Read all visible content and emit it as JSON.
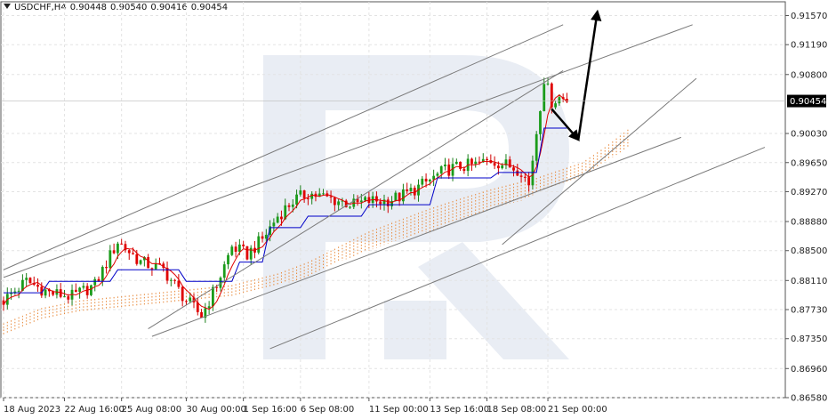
{
  "header": {
    "symbol": "USDCHF,H4",
    "open": "0.90448",
    "high": "0.90540",
    "low": "0.90416",
    "close": "0.90454"
  },
  "chart_data": {
    "type": "candlestick",
    "instrument": "USDCHF",
    "timeframe": "H4",
    "y_ticks": [
      "0.91570",
      "0.91190",
      "0.90800",
      "0.90030",
      "0.89650",
      "0.89270",
      "0.88880",
      "0.88500",
      "0.88110",
      "0.87730",
      "0.87350",
      "0.86960",
      "0.86580"
    ],
    "y_ticks_at": [
      0.9157,
      0.9119,
      0.908,
      0.9003,
      0.8965,
      0.8927,
      0.8888,
      0.885,
      0.8811,
      0.8773,
      0.8735,
      0.8696,
      0.8658
    ],
    "ylim": [
      0.8658,
      0.9175
    ],
    "current_price": "0.90454",
    "x_ticks": [
      "18 Aug 2023",
      "22 Aug 16:00",
      "25 Aug 08:00",
      "30 Aug 00:00",
      "1 Sep 16:00",
      "6 Sep 08:00",
      "11 Sep 00:00",
      "13 Sep 16:00",
      "18 Sep 08:00",
      "21 Sep 00:00"
    ],
    "x_ticks_bar": [
      0,
      16,
      31,
      48,
      63,
      78,
      96,
      112,
      127,
      143
    ],
    "total_bars": 210,
    "candle_key_closes": [
      [
        0,
        0.8785
      ],
      [
        6,
        0.881
      ],
      [
        12,
        0.8795
      ],
      [
        18,
        0.879
      ],
      [
        24,
        0.8805
      ],
      [
        30,
        0.8862
      ],
      [
        36,
        0.8835
      ],
      [
        42,
        0.8825
      ],
      [
        48,
        0.8785
      ],
      [
        52,
        0.8765
      ],
      [
        56,
        0.8805
      ],
      [
        60,
        0.8855
      ],
      [
        64,
        0.8845
      ],
      [
        68,
        0.8865
      ],
      [
        72,
        0.8895
      ],
      [
        76,
        0.8915
      ],
      [
        80,
        0.8925
      ],
      [
        84,
        0.892
      ],
      [
        88,
        0.8915
      ],
      [
        92,
        0.891
      ],
      [
        96,
        0.8915
      ],
      [
        100,
        0.8915
      ],
      [
        104,
        0.892
      ],
      [
        108,
        0.893
      ],
      [
        112,
        0.8942
      ],
      [
        116,
        0.8955
      ],
      [
        120,
        0.896
      ],
      [
        124,
        0.8962
      ],
      [
        128,
        0.8968
      ],
      [
        132,
        0.8962
      ],
      [
        136,
        0.8955
      ],
      [
        138,
        0.8935
      ],
      [
        140,
        0.9005
      ],
      [
        142,
        0.9075
      ],
      [
        144,
        0.9045
      ],
      [
        146,
        0.905
      ],
      [
        148,
        0.9047
      ]
    ],
    "ichimoku": {
      "tenkan_color": "#e00000",
      "kijun_color": "#0000c8",
      "cloud_color": "#e8893a",
      "kijun_key": [
        [
          0,
          0.8795
        ],
        [
          10,
          0.8795
        ],
        [
          12,
          0.881
        ],
        [
          28,
          0.881
        ],
        [
          30,
          0.8825
        ],
        [
          46,
          0.8825
        ],
        [
          48,
          0.881
        ],
        [
          60,
          0.881
        ],
        [
          62,
          0.8835
        ],
        [
          68,
          0.8835
        ],
        [
          70,
          0.888
        ],
        [
          78,
          0.888
        ],
        [
          80,
          0.8895
        ],
        [
          94,
          0.8895
        ],
        [
          96,
          0.891
        ],
        [
          112,
          0.891
        ],
        [
          114,
          0.8945
        ],
        [
          128,
          0.8945
        ],
        [
          130,
          0.8952
        ],
        [
          140,
          0.8952
        ],
        [
          142,
          0.901
        ],
        [
          148,
          0.901
        ]
      ],
      "cloud_top_key": [
        [
          0,
          0.8755
        ],
        [
          10,
          0.8775
        ],
        [
          20,
          0.8785
        ],
        [
          30,
          0.879
        ],
        [
          40,
          0.8795
        ],
        [
          50,
          0.88
        ],
        [
          60,
          0.8805
        ],
        [
          64,
          0.881
        ],
        [
          72,
          0.882
        ],
        [
          80,
          0.8835
        ],
        [
          88,
          0.8855
        ],
        [
          96,
          0.8875
        ],
        [
          104,
          0.889
        ],
        [
          112,
          0.8905
        ],
        [
          120,
          0.8918
        ],
        [
          128,
          0.893
        ],
        [
          136,
          0.894
        ],
        [
          140,
          0.8945
        ],
        [
          146,
          0.8955
        ],
        [
          152,
          0.8965
        ],
        [
          158,
          0.8985
        ],
        [
          164,
          0.9008
        ]
      ],
      "cloud_bottom_key": [
        [
          0,
          0.874
        ],
        [
          10,
          0.876
        ],
        [
          20,
          0.877
        ],
        [
          30,
          0.8775
        ],
        [
          40,
          0.878
        ],
        [
          50,
          0.8785
        ],
        [
          60,
          0.879
        ],
        [
          64,
          0.8795
        ],
        [
          72,
          0.8805
        ],
        [
          80,
          0.8815
        ],
        [
          88,
          0.8835
        ],
        [
          96,
          0.885
        ],
        [
          104,
          0.8865
        ],
        [
          112,
          0.8875
        ],
        [
          120,
          0.889
        ],
        [
          128,
          0.8905
        ],
        [
          136,
          0.8915
        ],
        [
          140,
          0.8925
        ],
        [
          146,
          0.8935
        ],
        [
          152,
          0.8948
        ],
        [
          158,
          0.8965
        ],
        [
          164,
          0.8985
        ]
      ]
    },
    "trendlines": [
      {
        "from": [
          0,
          0.8825
        ],
        "to": [
          147,
          0.9145
        ]
      },
      {
        "from": [
          0,
          0.8815
        ],
        "to": [
          181,
          0.9145
        ]
      },
      {
        "from": [
          39,
          0.8738
        ],
        "to": [
          178,
          0.8998
        ]
      },
      {
        "from": [
          70,
          0.8722
        ],
        "to": [
          200,
          0.8985
        ]
      },
      {
        "from": [
          38,
          0.8748
        ],
        "to": [
          147,
          0.9085
        ]
      },
      {
        "from": [
          131,
          0.8858
        ],
        "to": [
          182,
          0.9075
        ]
      }
    ],
    "forecast_arrows": [
      {
        "from": [
          144,
          0.9035
        ],
        "to": [
          151,
          0.8995
        ]
      },
      {
        "from": [
          151,
          0.8995
        ],
        "to": [
          156,
          0.9162
        ]
      }
    ]
  }
}
